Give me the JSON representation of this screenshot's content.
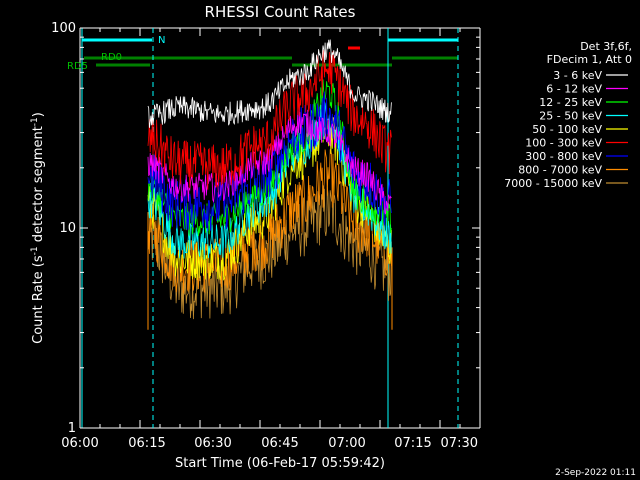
{
  "chart_data": {
    "type": "line",
    "title": "RHESSI Count Rates",
    "xlabel": "Start Time (06-Feb-17 05:59:42)",
    "ylabel_main": "Count Rate (s",
    "ylabel_sup1": "-1",
    "ylabel_mid": " detector segment",
    "ylabel_sup2": "-1",
    "ylabel_end": ")",
    "y_scale": "log",
    "ylim": [
      1,
      100
    ],
    "x_ticks": [
      "06:00",
      "06:15",
      "06:30",
      "06:45",
      "07:00",
      "07:15",
      "07:30"
    ],
    "y_ticks": [
      "1",
      "10",
      "100"
    ],
    "legend_header_1": "Det 3f,6f,",
    "legend_header_2": "FDecim 1, Att 0",
    "series": [
      {
        "name": "3 - 6 keV",
        "color": "#ffffff",
        "min": [
          36,
          40,
          37,
          40,
          58,
          78,
          45,
          38
        ]
      },
      {
        "name": "6 - 12 keV",
        "color": "#ff00ff",
        "values": [
          21,
          16,
          16,
          21,
          34,
          30,
          19,
          13
        ]
      },
      {
        "name": "12 - 25 keV",
        "color": "#00ff00",
        "values": [
          16,
          11,
          11,
          15,
          27,
          48,
          14,
          11
        ]
      },
      {
        "name": "25 - 50 keV",
        "color": "#00ffff",
        "values": [
          14,
          8.5,
          8.5,
          13,
          25,
          36,
          13,
          9
        ]
      },
      {
        "name": "50 - 100 keV",
        "color": "#ffff00",
        "values": [
          13,
          7,
          7,
          11,
          22,
          30,
          13,
          8
        ]
      },
      {
        "name": "100 - 300 keV",
        "color": "#ff0000",
        "values": [
          28,
          21,
          20,
          26,
          45,
          62,
          35,
          24
        ]
      },
      {
        "name": "300 - 800 keV",
        "color": "#0000ff",
        "values": [
          18,
          13,
          13,
          17,
          30,
          36,
          18,
          13
        ]
      },
      {
        "name": "800 - 7000 keV",
        "color": "#ff8c00",
        "values": [
          10,
          6.5,
          6.5,
          8.5,
          13,
          18,
          10,
          7.5
        ]
      },
      {
        "name": "7000 - 15000 keV",
        "color": "#c08c30",
        "values": [
          9,
          5,
          5,
          7,
          10,
          12,
          8,
          6
        ]
      }
    ],
    "attenuator_labels": [
      "N",
      "RD0",
      "RD5"
    ],
    "footer_date": "2-Sep-2022 01:11"
  }
}
